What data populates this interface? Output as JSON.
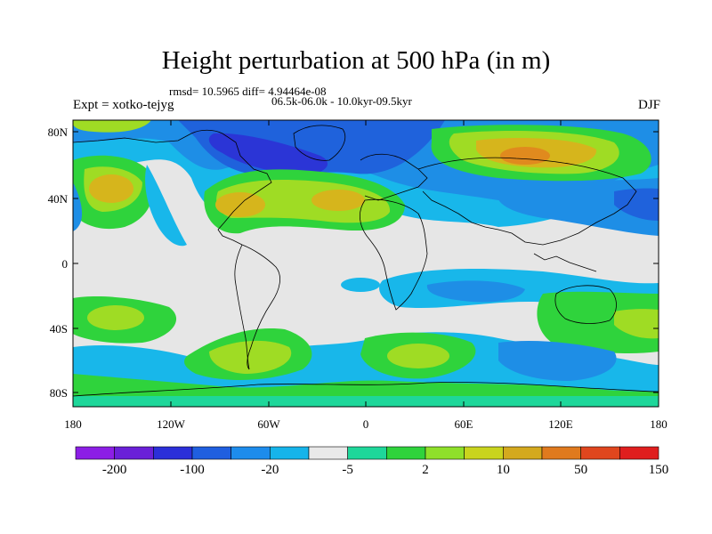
{
  "title": "Height perturbation at 500 hPa (in m)",
  "stats_line": "rmsd= 10.5965 diff= 4.94464e-08",
  "experiment": "Expt = xotko-tejyg",
  "period": "06.5k-06.0k - 10.0kyr-09.5kyr",
  "season": "DJF",
  "lat_ticks": [
    "80N",
    "40N",
    "0",
    "40S",
    "80S"
  ],
  "lon_ticks": [
    "180",
    "120W",
    "60W",
    "0",
    "60E",
    "120E",
    "180"
  ],
  "colorbar": {
    "labels": [
      "-200",
      "-100",
      "-20",
      "-5",
      "2",
      "10",
      "50",
      "150"
    ],
    "colors": [
      "#8c1ee6",
      "#6a20d8",
      "#2b2fd9",
      "#1f5fe0",
      "#1d8cec",
      "#16b4ea",
      "#e9e9e9",
      "#1ed79a",
      "#2fd33c",
      "#8fe02a",
      "#c9d41e",
      "#d4a91e",
      "#e07a1e",
      "#e0461e",
      "#e01e1e"
    ]
  },
  "field_colors": {
    "neutral": "#e6e6e6",
    "light_blue": "#18b7ea",
    "mid_blue": "#1e8ee6",
    "blue": "#1f62dc",
    "dark_blue": "#2b35d6",
    "teal": "#1ed79a",
    "green": "#2fd33c",
    "yellow_green": "#9fdc24",
    "mustard": "#d6b51c",
    "orange": "#e08a1e"
  }
}
